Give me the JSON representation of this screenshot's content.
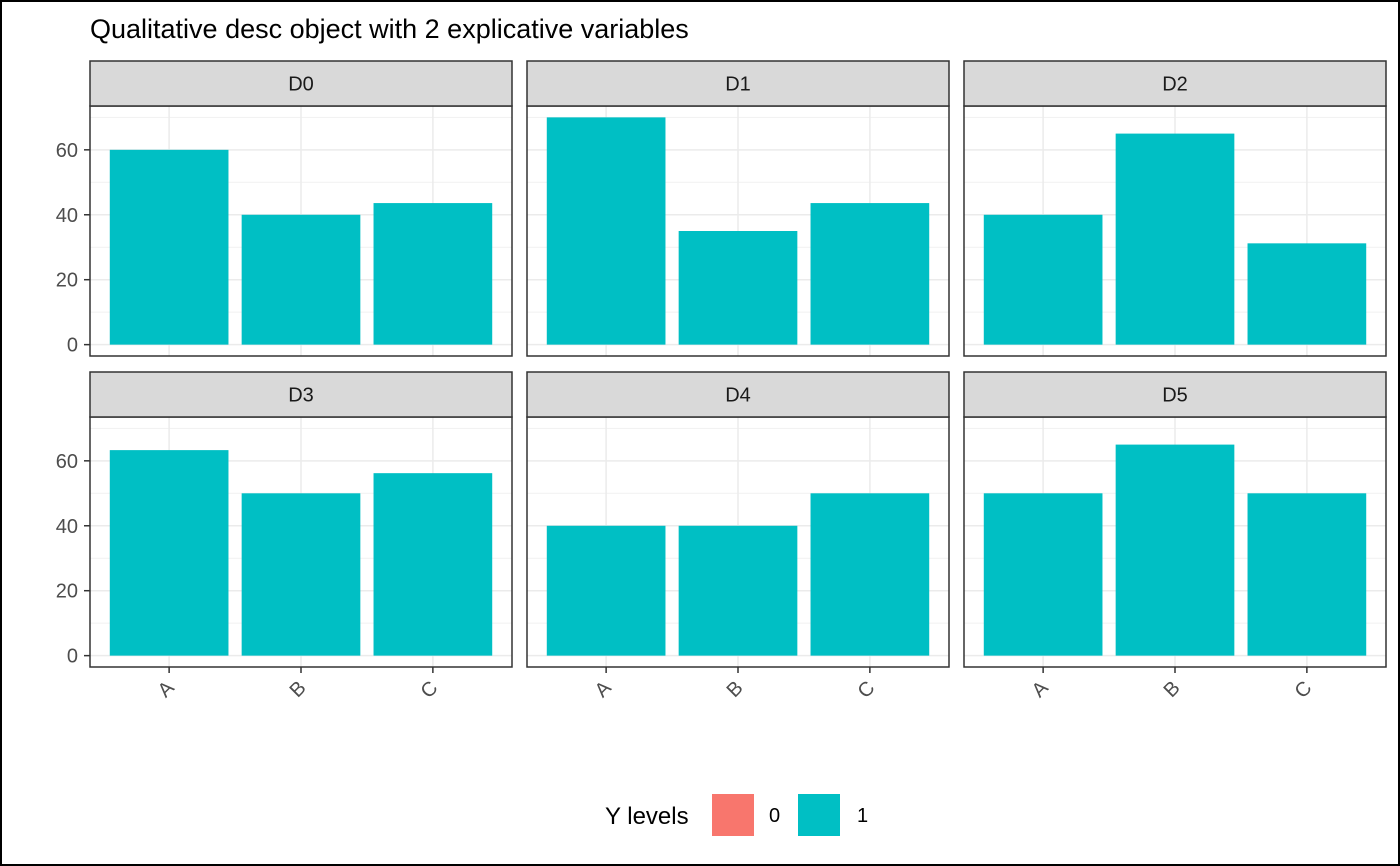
{
  "chart_data": {
    "type": "bar",
    "title": "Qualitative desc object with 2 explicative variables",
    "xlabel": "",
    "ylabel": "",
    "categories": [
      "A",
      "B",
      "C"
    ],
    "y_ticks": [
      0,
      20,
      40,
      60
    ],
    "ylim": [
      -3.5,
      73.5
    ],
    "grid": true,
    "facets": [
      {
        "label": "D0",
        "values": [
          60,
          40,
          43.6
        ]
      },
      {
        "label": "D1",
        "values": [
          70,
          35,
          43.6
        ]
      },
      {
        "label": "D2",
        "values": [
          40,
          65,
          31.2
        ]
      },
      {
        "label": "D3",
        "values": [
          63.3,
          50,
          56.2
        ]
      },
      {
        "label": "D4",
        "values": [
          40,
          40,
          50
        ]
      },
      {
        "label": "D5",
        "values": [
          50,
          65,
          50
        ]
      }
    ],
    "series": [
      {
        "name": "1",
        "color": "#00BFC4"
      }
    ],
    "legend": {
      "title": "Y levels",
      "placement": "bottom",
      "items": [
        {
          "label": "0",
          "color": "#F8766D"
        },
        {
          "label": "1",
          "color": "#00BFC4"
        }
      ]
    }
  }
}
